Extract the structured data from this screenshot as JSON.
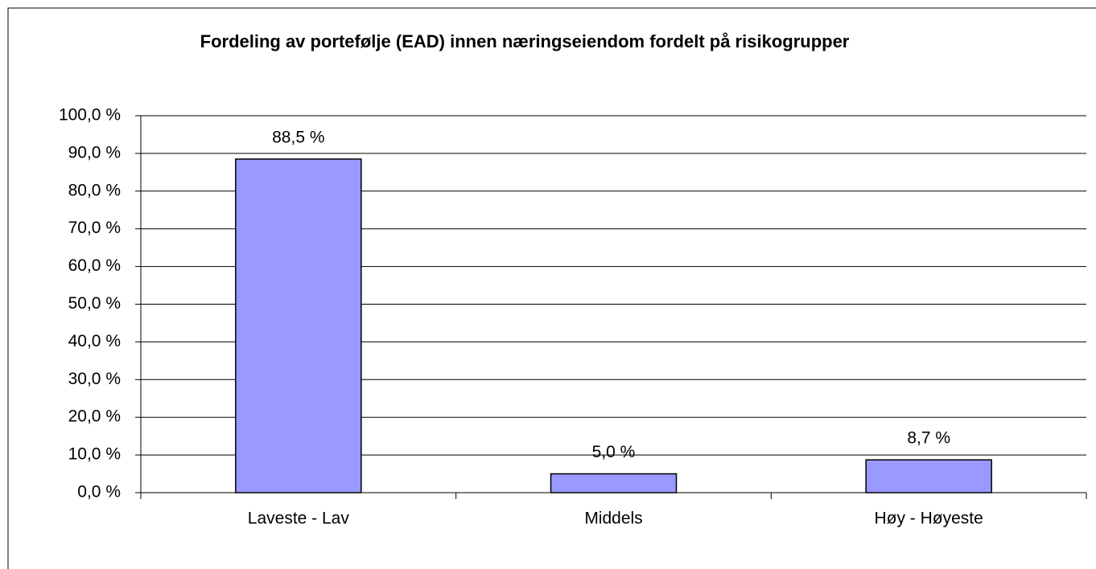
{
  "chart_data": {
    "type": "bar",
    "title": "Fordeling av portefølje (EAD) innen næringseiendom fordelt på risikogrupper",
    "categories": [
      "Laveste - Lav",
      "Middels",
      "Høy - Høyeste"
    ],
    "values": [
      88.5,
      5.0,
      8.7
    ],
    "value_labels": [
      "88,5 %",
      "5,0 %",
      "8,7 %"
    ],
    "color": "#9999ff",
    "ylim": [
      0,
      100
    ],
    "yticks": [
      {
        "value": 0,
        "label": "0,0 %"
      },
      {
        "value": 10,
        "label": "10,0 %"
      },
      {
        "value": 20,
        "label": "20,0 %"
      },
      {
        "value": 30,
        "label": "30,0 %"
      },
      {
        "value": 40,
        "label": "40,0 %"
      },
      {
        "value": 50,
        "label": "50,0 %"
      },
      {
        "value": 60,
        "label": "60,0 %"
      },
      {
        "value": 70,
        "label": "70,0 %"
      },
      {
        "value": 80,
        "label": "80,0 %"
      },
      {
        "value": 90,
        "label": "90,0 %"
      },
      {
        "value": 100,
        "label": "100,0 %"
      }
    ],
    "grid": true
  }
}
